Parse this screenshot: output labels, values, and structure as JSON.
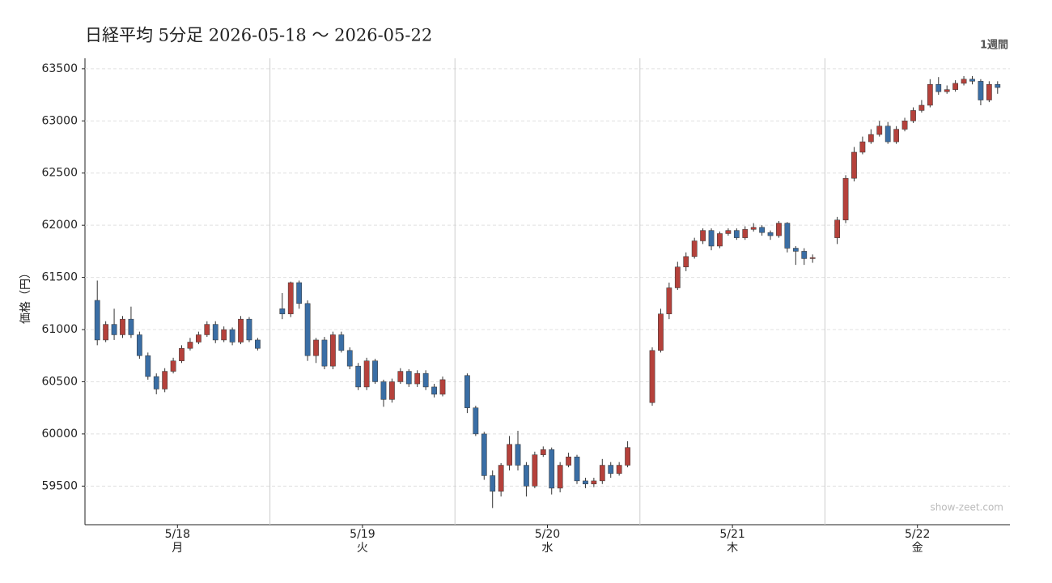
{
  "chart_data": {
    "type": "candlestick",
    "title": "日経平均 5分足  2026-05-18 〜 2026-05-22",
    "period_label": "1週間",
    "y_label": "価格（円）",
    "watermark": "show-zeet.com",
    "up_color": "#b5413b",
    "down_color": "#3a6ea5",
    "ylim": [
      59130,
      63600
    ],
    "yticks": [
      59500,
      60000,
      60500,
      61000,
      61500,
      62000,
      62500,
      63000,
      63500
    ],
    "grid": true,
    "days": [
      {
        "date": "5/18",
        "weekday": "月",
        "open": [
          61280,
          60900,
          61050,
          60950,
          61100,
          60950,
          60750,
          60550,
          60430,
          60600,
          60700,
          60820,
          60880,
          60950,
          61050,
          60900,
          61000,
          60880,
          61100,
          60900
        ],
        "high": [
          61470,
          61080,
          61200,
          61130,
          61220,
          60980,
          60780,
          60580,
          60630,
          60730,
          60850,
          60920,
          60980,
          61080,
          61080,
          61030,
          61020,
          61130,
          61120,
          60920
        ],
        "low": [
          60850,
          60880,
          60900,
          60920,
          60920,
          60720,
          60520,
          60380,
          60400,
          60580,
          60680,
          60800,
          60860,
          60930,
          60870,
          60880,
          60850,
          60860,
          60880,
          60800
        ],
        "close": [
          60900,
          61050,
          60950,
          61100,
          60950,
          60750,
          60550,
          60430,
          60600,
          60700,
          60820,
          60880,
          60950,
          61050,
          60900,
          61000,
          60880,
          61100,
          60900,
          60820
        ]
      },
      {
        "date": "5/19",
        "weekday": "火",
        "open": [
          61200,
          61150,
          61450,
          61250,
          60750,
          60900,
          60650,
          60950,
          60800,
          60650,
          60450,
          60700,
          60500,
          60330,
          60500,
          60600,
          60480,
          60580,
          60450,
          60380
        ],
        "high": [
          61350,
          61460,
          61470,
          61280,
          60920,
          60930,
          60980,
          60980,
          60830,
          60680,
          60730,
          60720,
          60520,
          60530,
          60630,
          60620,
          60610,
          60610,
          60480,
          60550
        ],
        "low": [
          61100,
          61120,
          61200,
          60700,
          60680,
          60620,
          60620,
          60780,
          60620,
          60420,
          60420,
          60480,
          60260,
          60300,
          60480,
          60450,
          60450,
          60420,
          60350,
          60360
        ],
        "close": [
          61150,
          61450,
          61250,
          60750,
          60900,
          60650,
          60950,
          60800,
          60650,
          60450,
          60700,
          60500,
          60330,
          60500,
          60600,
          60480,
          60580,
          60450,
          60380,
          60520
        ]
      },
      {
        "date": "5/20",
        "weekday": "水",
        "open": [
          60560,
          60250,
          60000,
          59600,
          59450,
          59700,
          59900,
          59700,
          59500,
          59800,
          59850,
          59480,
          59700,
          59780,
          59550,
          59520,
          59550,
          59700,
          59620,
          59700
        ],
        "high": [
          60580,
          60270,
          60020,
          59650,
          59720,
          59980,
          60030,
          59730,
          59830,
          59880,
          59870,
          59730,
          59820,
          59800,
          59580,
          59580,
          59760,
          59730,
          59730,
          59930
        ],
        "low": [
          60200,
          59980,
          59560,
          59290,
          59400,
          59650,
          59650,
          59400,
          59480,
          59780,
          59420,
          59440,
          59680,
          59520,
          59480,
          59490,
          59520,
          59580,
          59600,
          59680
        ],
        "close": [
          60250,
          60000,
          59600,
          59450,
          59700,
          59900,
          59700,
          59500,
          59800,
          59850,
          59480,
          59700,
          59780,
          59550,
          59520,
          59550,
          59700,
          59620,
          59700,
          59870
        ]
      },
      {
        "date": "5/21",
        "weekday": "木",
        "open": [
          60300,
          60800,
          61150,
          61400,
          61600,
          61700,
          61850,
          61950,
          61800,
          61920,
          61950,
          61880,
          61960,
          61980,
          61930,
          61900,
          62020,
          61780,
          61750,
          61680
        ],
        "high": [
          60830,
          61200,
          61450,
          61650,
          61740,
          61880,
          61970,
          61970,
          61940,
          61970,
          61970,
          61990,
          62020,
          62000,
          61950,
          62040,
          62030,
          61800,
          61780,
          61720
        ],
        "low": [
          60270,
          60780,
          61100,
          61380,
          61560,
          61680,
          61820,
          61760,
          61780,
          61900,
          61860,
          61860,
          61940,
          61900,
          61860,
          61880,
          61740,
          61620,
          61620,
          61640
        ],
        "close": [
          60800,
          61150,
          61400,
          61600,
          61700,
          61850,
          61950,
          61800,
          61920,
          61950,
          61880,
          61960,
          61980,
          61930,
          61900,
          62020,
          61780,
          61750,
          61680,
          61690
        ]
      },
      {
        "date": "5/22",
        "weekday": "金",
        "open": [
          61880,
          62050,
          62450,
          62700,
          62800,
          62870,
          62950,
          62800,
          62920,
          63000,
          63100,
          63150,
          63350,
          63280,
          63300,
          63360,
          63400,
          63380,
          63200,
          63350
        ],
        "high": [
          62080,
          62480,
          62750,
          62850,
          62920,
          63000,
          62990,
          62950,
          63030,
          63130,
          63200,
          63400,
          63420,
          63340,
          63390,
          63430,
          63430,
          63400,
          63380,
          63380
        ],
        "low": [
          61820,
          62020,
          62420,
          62680,
          62780,
          62850,
          62780,
          62780,
          62900,
          62980,
          63080,
          63130,
          63250,
          63260,
          63280,
          63340,
          63350,
          63150,
          63180,
          63260
        ],
        "close": [
          62050,
          62450,
          62700,
          62800,
          62870,
          62950,
          62800,
          62920,
          63000,
          63100,
          63150,
          63350,
          63280,
          63300,
          63360,
          63400,
          63380,
          63200,
          63350,
          63320
        ]
      }
    ]
  }
}
